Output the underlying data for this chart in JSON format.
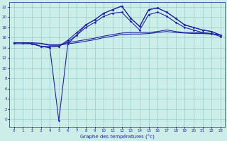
{
  "title": "Graphe des températures (°c)",
  "bg_color": "#cceee8",
  "grid_color": "#99cccc",
  "line_color": "#2222aa",
  "xlim": [
    -0.5,
    23.5
  ],
  "ylim": [
    -1.5,
    23
  ],
  "xticks": [
    0,
    1,
    2,
    3,
    4,
    5,
    6,
    7,
    8,
    9,
    10,
    11,
    12,
    13,
    14,
    15,
    16,
    17,
    18,
    19,
    20,
    21,
    22,
    23
  ],
  "yticks": [
    0,
    2,
    4,
    6,
    8,
    10,
    12,
    14,
    16,
    18,
    20,
    22
  ],
  "line_top_x": [
    0,
    1,
    2,
    3,
    4,
    5,
    6,
    7,
    8,
    9,
    10,
    11,
    12,
    13,
    14,
    15,
    16,
    17,
    18,
    19,
    20,
    21,
    22,
    23
  ],
  "line_top_y": [
    15.0,
    15.0,
    14.8,
    14.3,
    14.2,
    14.3,
    15.5,
    17.0,
    18.5,
    19.5,
    20.8,
    21.5,
    22.2,
    19.8,
    18.2,
    21.5,
    21.8,
    21.0,
    19.8,
    18.5,
    18.0,
    17.5,
    17.2,
    16.5
  ],
  "line_mid1_x": [
    0,
    1,
    2,
    3,
    4,
    5,
    6,
    7,
    8,
    9,
    10,
    11,
    12,
    13,
    14,
    15,
    16,
    17,
    18,
    19,
    20,
    21,
    22,
    23
  ],
  "line_mid1_y": [
    15.0,
    15.0,
    14.8,
    14.3,
    14.2,
    14.3,
    15.2,
    16.5,
    18.0,
    19.0,
    20.2,
    20.8,
    21.0,
    19.2,
    17.5,
    20.5,
    21.0,
    20.2,
    19.0,
    18.0,
    17.5,
    17.0,
    16.8,
    16.2
  ],
  "line_flat1_x": [
    0,
    1,
    2,
    3,
    4,
    5,
    6,
    7,
    8,
    9,
    10,
    11,
    12,
    13,
    14,
    15,
    16,
    17,
    18,
    19,
    20,
    21,
    22,
    23
  ],
  "line_flat1_y": [
    14.8,
    14.8,
    14.8,
    14.8,
    14.5,
    14.5,
    14.8,
    15.0,
    15.3,
    15.6,
    16.0,
    16.3,
    16.6,
    16.7,
    16.7,
    16.8,
    17.0,
    17.2,
    17.0,
    16.9,
    16.8,
    16.8,
    16.7,
    16.5
  ],
  "line_flat2_x": [
    0,
    1,
    2,
    3,
    4,
    5,
    6,
    7,
    8,
    9,
    10,
    11,
    12,
    13,
    14,
    15,
    16,
    17,
    18,
    19,
    20,
    21,
    22,
    23
  ],
  "line_flat2_y": [
    15.0,
    15.0,
    15.0,
    14.9,
    14.6,
    14.6,
    15.0,
    15.3,
    15.6,
    15.9,
    16.3,
    16.6,
    16.9,
    17.0,
    17.0,
    17.0,
    17.2,
    17.5,
    17.2,
    17.0,
    17.0,
    16.9,
    16.8,
    16.5
  ],
  "line_dip_x": [
    0,
    1,
    2,
    3,
    4,
    5,
    6,
    7,
    8,
    9,
    10,
    11,
    12,
    13,
    14,
    15,
    16,
    17,
    18,
    19,
    20,
    21,
    22,
    23
  ],
  "line_dip_y": [
    15.0,
    15.0,
    14.8,
    14.3,
    14.0,
    -0.3,
    14.8,
    16.5,
    18.5,
    19.5,
    20.8,
    21.5,
    22.2,
    19.8,
    18.2,
    21.5,
    21.8,
    21.0,
    19.8,
    18.5,
    18.0,
    17.5,
    17.2,
    16.5
  ]
}
